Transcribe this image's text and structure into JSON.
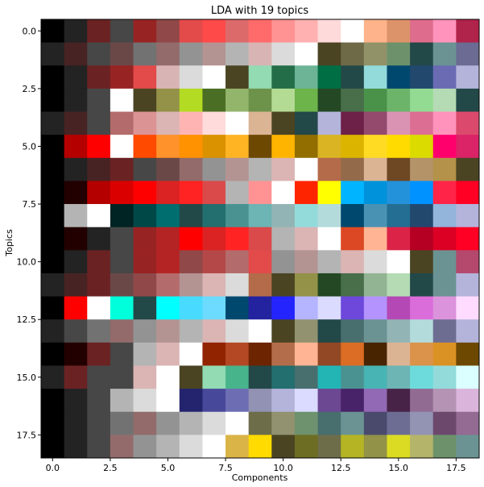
{
  "chart_data": {
    "type": "heatmap",
    "title": "LDA with 19 topics",
    "xlabel": "Components",
    "ylabel": "Topics",
    "xlim": [
      -0.5,
      18.5
    ],
    "ylim": [
      18.5,
      -0.5
    ],
    "x_ticks": [
      0.0,
      2.5,
      5.0,
      7.5,
      10.0,
      12.5,
      15.0,
      17.5
    ],
    "x_tick_labels": [
      "0.0",
      "2.5",
      "5.0",
      "7.5",
      "10.0",
      "12.5",
      "15.0",
      "17.5"
    ],
    "y_ticks": [
      0.0,
      2.5,
      5.0,
      7.5,
      10.0,
      12.5,
      15.0,
      17.5
    ],
    "y_tick_labels": [
      "0.0",
      "2.5",
      "5.0",
      "7.5",
      "10.0",
      "12.5",
      "15.0",
      "17.5"
    ],
    "grid": false,
    "legend": "none",
    "cells": [
      [
        "#000000",
        "#232323",
        "#6b2223",
        "#474747",
        "#982323",
        "#904848",
        "#e34a4a",
        "#ff4a4a",
        "#dc6a6a",
        "#ff6a6a",
        "#ff9393",
        "#ffb0b0",
        "#ffdada",
        "#ffffff",
        "#ffb38a",
        "#dd936a",
        "#de6c8c",
        "#ff93bb",
        "#b0234a"
      ],
      [
        "#232323",
        "#482323",
        "#474747",
        "#6b4848",
        "#727272",
        "#936b6b",
        "#939393",
        "#b49393",
        "#b4b4b4",
        "#d9b4b4",
        "#dbdbdb",
        "#ffffff",
        "#4a4423",
        "#6e6a48",
        "#929269",
        "#6d926b",
        "#234848",
        "#6b9393",
        "#6b6b93"
      ],
      [
        "#000000",
        "#232323",
        "#6b2223",
        "#982323",
        "#e34a4a",
        "#d9b4b4",
        "#dbdbdb",
        "#ffffff",
        "#4a4423",
        "#93dbb2",
        "#236e48",
        "#6cb495",
        "#006e44",
        "#234848",
        "#93dbdb",
        "#00486e",
        "#23486e",
        "#6b6bb4",
        "#b4b4db"
      ],
      [
        "#000000",
        "#232323",
        "#474747",
        "#ffffff",
        "#4a4423",
        "#939248",
        "#b4db23",
        "#4a6e23",
        "#93b46b",
        "#6d924a",
        "#b4db93",
        "#6db44a",
        "#234823",
        "#486e4a",
        "#4a924a",
        "#6db46b",
        "#93db93",
        "#b4dbb4",
        "#234848"
      ],
      [
        "#232323",
        "#482323",
        "#474747",
        "#b46b6b",
        "#dc9393",
        "#dbb4b4",
        "#ffb4b4",
        "#ffdbdb",
        "#ffffff",
        "#dbb493",
        "#4a4423",
        "#234848",
        "#b4b4db",
        "#6d2048",
        "#934a6d",
        "#db93b4",
        "#dc6d93",
        "#ff93bb",
        "#db4a6d"
      ],
      [
        "#000000",
        "#b50000",
        "#ff0000",
        "#ffffff",
        "#ff4a00",
        "#ff922b",
        "#ff9200",
        "#db9200",
        "#ffb424",
        "#6d4800",
        "#ffb400",
        "#926e00",
        "#dbb423",
        "#dbb400",
        "#ffdb24",
        "#ffdb00",
        "#dbdb00",
        "#ff006d",
        "#db2368"
      ],
      [
        "#000000",
        "#232323",
        "#482323",
        "#6b2223",
        "#474747",
        "#6b4848",
        "#936b6b",
        "#939393",
        "#b49393",
        "#b4b4b4",
        "#dbb4b4",
        "#ffffff",
        "#b46b4a",
        "#936b4a",
        "#dbb493",
        "#6d4823",
        "#b49369",
        "#b4924a",
        "#4a4423"
      ],
      [
        "#000000",
        "#230000",
        "#b50000",
        "#db0000",
        "#ff0000",
        "#db2323",
        "#ff2323",
        "#db4a4a",
        "#b4b4b4",
        "#ff9393",
        "#ffffff",
        "#ff2400",
        "#ffff00",
        "#00b4ff",
        "#0092db",
        "#2492db",
        "#0092ff",
        "#ff2448",
        "#ff0024"
      ],
      [
        "#000000",
        "#b4b4b4",
        "#ffffff",
        "#002323",
        "#004848",
        "#006e6e",
        "#234848",
        "#236e6e",
        "#4a9292",
        "#6db4b4",
        "#93b4b4",
        "#93dbdb",
        "#b4dbdb",
        "#00486e",
        "#4a92b4",
        "#236e92",
        "#23486e",
        "#93b4db",
        "#b4b4db"
      ],
      [
        "#000000",
        "#230000",
        "#232323",
        "#474747",
        "#982323",
        "#b52424",
        "#ff0000",
        "#db2323",
        "#ff2323",
        "#db4a4a",
        "#b4b4b4",
        "#dbb4b4",
        "#ffffff",
        "#db4823",
        "#ffb493",
        "#db2348",
        "#b50023",
        "#db0024",
        "#ff0024"
      ],
      [
        "#000000",
        "#232323",
        "#6b2223",
        "#474747",
        "#982323",
        "#b52424",
        "#904848",
        "#b44848",
        "#b46b6b",
        "#e34a4a",
        "#939393",
        "#b49393",
        "#b4b4b4",
        "#dbb4b4",
        "#dbdbdb",
        "#ffffff",
        "#4a4423",
        "#6b9393",
        "#b4486d"
      ],
      [
        "#232323",
        "#482323",
        "#6b2223",
        "#6b4848",
        "#904848",
        "#b46b6b",
        "#b49393",
        "#dbb4b4",
        "#dbdbdb",
        "#b46b4a",
        "#4a4423",
        "#939248",
        "#234823",
        "#486e4a",
        "#93b493",
        "#b4dbb4",
        "#234848",
        "#6b9393",
        "#b4b4db"
      ],
      [
        "#000000",
        "#ff0000",
        "#ffffff",
        "#00ffdb",
        "#234848",
        "#00ffff",
        "#48dbff",
        "#6ddbff",
        "#00486e",
        "#2323a0",
        "#2424ff",
        "#b4b4ff",
        "#dbdbff",
        "#6d48db",
        "#b493ff",
        "#b448b4",
        "#db6ddb",
        "#db93db",
        "#ffdbff"
      ],
      [
        "#232323",
        "#474747",
        "#727272",
        "#936b6b",
        "#939393",
        "#b49393",
        "#b4b4b4",
        "#dbb4b4",
        "#dbdbdb",
        "#ffffff",
        "#4a4423",
        "#939270",
        "#234848",
        "#486e6e",
        "#6b9393",
        "#93b4b4",
        "#b4dbdb",
        "#6d6d92",
        "#b4b4db"
      ],
      [
        "#000000",
        "#230000",
        "#6b2223",
        "#474747",
        "#b4b4b4",
        "#dbb4b4",
        "#ffffff",
        "#922300",
        "#b44824",
        "#6d2400",
        "#b46d4a",
        "#ffb493",
        "#924824",
        "#db6d24",
        "#482400",
        "#dbb493",
        "#db924a",
        "#db9224",
        "#6d4800"
      ],
      [
        "#232323",
        "#6b2223",
        "#474747",
        "#474747",
        "#dbb4b4",
        "#ffffff",
        "#4a4423",
        "#93dbb2",
        "#48b48c",
        "#234848",
        "#236e6e",
        "#486e6e",
        "#23b4b4",
        "#4a9292",
        "#48b4b4",
        "#6db4b4",
        "#6ddbdb",
        "#93dbdb",
        "#dbffff"
      ],
      [
        "#000000",
        "#232323",
        "#474747",
        "#b4b4b4",
        "#dbdbdb",
        "#ffffff",
        "#23236e",
        "#48489b",
        "#6d6db4",
        "#9292b4",
        "#b4b4db",
        "#dbdbff",
        "#6d4892",
        "#482369",
        "#9269b4",
        "#482348",
        "#926b92",
        "#b493b4",
        "#dbb4db"
      ],
      [
        "#000000",
        "#232323",
        "#474747",
        "#727272",
        "#936b6b",
        "#939393",
        "#b4b4b4",
        "#dbdbdb",
        "#ffffff",
        "#6d6d4a",
        "#929270",
        "#6d926d",
        "#486e6e",
        "#6b9393",
        "#4a4a6d",
        "#6d6d93",
        "#9393b4",
        "#6d486d",
        "#936b93"
      ],
      [
        "#000000",
        "#232323",
        "#474747",
        "#936b6b",
        "#939393",
        "#b4b4b4",
        "#dbdbdb",
        "#ffffff",
        "#dbb448",
        "#ffdb00",
        "#4a4423",
        "#6d6d23",
        "#6d6d4a",
        "#b4b424",
        "#929248",
        "#dbdb24",
        "#b4b46b",
        "#6d926b",
        "#6b9393"
      ]
    ]
  }
}
